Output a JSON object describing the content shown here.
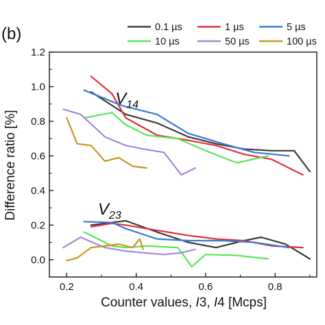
{
  "panel_label": "(b)",
  "chart_data": {
    "type": "line",
    "xlabel": "Counter values, I3, I4 [Mcps]",
    "ylabel": "Difference ratio [%]",
    "xlim": [
      0.15,
      0.92
    ],
    "ylim": [
      -0.1,
      1.2
    ],
    "xticks": [
      "0.2",
      "0.4",
      "0.6",
      "0.8"
    ],
    "yticks": [
      "0.0",
      "0.2",
      "0.4",
      "0.6",
      "0.8",
      "1.0",
      "1.2"
    ],
    "grid": false,
    "legend_position": "top",
    "annotations": [
      {
        "id": "v14",
        "base": "V",
        "sub": "14",
        "x": 0.34,
        "y": 0.9
      },
      {
        "id": "v23",
        "base": "V",
        "sub": "23",
        "x": 0.29,
        "y": 0.26
      }
    ],
    "series": [
      {
        "name": "0.1 µs",
        "color": "#3a3a3a",
        "groups": [
          {
            "x": [
              0.27,
              0.37,
              0.46,
              0.55,
              0.63,
              0.71,
              0.79,
              0.855,
              0.9
            ],
            "y": [
              0.97,
              0.84,
              0.79,
              0.71,
              0.67,
              0.64,
              0.63,
              0.63,
              0.51
            ]
          },
          {
            "x": [
              0.27,
              0.37,
              0.46,
              0.55,
              0.63,
              0.71,
              0.76,
              0.83,
              0.9
            ],
            "y": [
              0.2,
              0.225,
              0.16,
              0.1,
              0.07,
              0.11,
              0.13,
              0.09,
              0.005
            ]
          }
        ]
      },
      {
        "name": "1 µs",
        "color": "#e0303c",
        "groups": [
          {
            "x": [
              0.27,
              0.33,
              0.37,
              0.46,
              0.55,
              0.63,
              0.71,
              0.79,
              0.88
            ],
            "y": [
              1.06,
              0.96,
              0.82,
              0.72,
              0.69,
              0.66,
              0.61,
              0.58,
              0.49
            ]
          },
          {
            "x": [
              0.27,
              0.33,
              0.37,
              0.46,
              0.55,
              0.63,
              0.71,
              0.79,
              0.88
            ],
            "y": [
              0.19,
              0.21,
              0.2,
              0.17,
              0.14,
              0.12,
              0.11,
              0.08,
              0.07
            ]
          }
        ]
      },
      {
        "name": "5 µs",
        "color": "#3a78d2",
        "groups": [
          {
            "x": [
              0.25,
              0.36,
              0.46,
              0.55,
              0.65,
              0.74,
              0.84
            ],
            "y": [
              0.98,
              0.89,
              0.84,
              0.73,
              0.67,
              0.62,
              0.6
            ]
          },
          {
            "x": [
              0.25,
              0.33,
              0.37,
              0.46,
              0.55,
              0.65,
              0.74,
              0.84
            ],
            "y": [
              0.22,
              0.215,
              0.18,
              0.12,
              0.11,
              0.11,
              0.1,
              0.07
            ]
          }
        ]
      },
      {
        "name": "10 µs",
        "color": "#59e659",
        "groups": [
          {
            "x": [
              0.25,
              0.33,
              0.37,
              0.43,
              0.52,
              0.6,
              0.69,
              0.78
            ],
            "y": [
              0.82,
              0.85,
              0.78,
              0.72,
              0.7,
              0.63,
              0.56,
              0.6
            ]
          },
          {
            "x": [
              0.25,
              0.33,
              0.37,
              0.43,
              0.52,
              0.56,
              0.6,
              0.69,
              0.78
            ],
            "y": [
              0.16,
              0.08,
              0.07,
              0.08,
              0.07,
              -0.04,
              0.03,
              0.025,
              0.005
            ]
          }
        ]
      },
      {
        "name": "50 µs",
        "color": "#a585d9",
        "groups": [
          {
            "x": [
              0.19,
              0.24,
              0.31,
              0.37,
              0.42,
              0.48,
              0.53,
              0.57
            ],
            "y": [
              0.87,
              0.84,
              0.71,
              0.66,
              0.64,
              0.62,
              0.49,
              0.53
            ]
          },
          {
            "x": [
              0.19,
              0.24,
              0.31,
              0.37,
              0.42,
              0.48,
              0.53,
              0.57
            ],
            "y": [
              0.07,
              0.13,
              0.07,
              0.05,
              0.04,
              0.03,
              0.04,
              0.06
            ]
          }
        ]
      },
      {
        "name": "100 µs",
        "color": "#c8961e",
        "groups": [
          {
            "x": [
              0.2,
              0.23,
              0.27,
              0.31,
              0.35,
              0.39,
              0.43
            ],
            "y": [
              0.82,
              0.67,
              0.66,
              0.57,
              0.59,
              0.54,
              0.53
            ]
          },
          {
            "x": [
              0.2,
              0.23,
              0.27,
              0.31,
              0.35,
              0.39,
              0.41,
              0.42
            ],
            "y": [
              -0.005,
              0.01,
              0.07,
              0.08,
              0.09,
              0.07,
              0.12,
              0.06
            ]
          }
        ]
      }
    ]
  }
}
